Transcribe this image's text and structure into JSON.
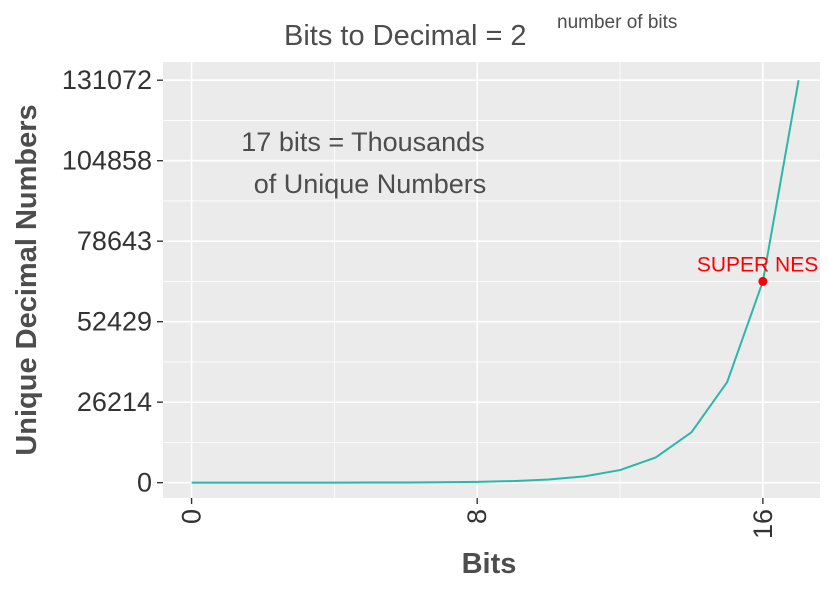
{
  "chart_data": {
    "type": "line",
    "title": "Bits to Decimal = 2",
    "title_superscript": "number of bits",
    "xlabel": "Bits",
    "ylabel": "Unique Decimal Numbers",
    "xlim": [
      -0.8,
      17.6
    ],
    "ylim": [
      -5000,
      137000
    ],
    "x_ticks": [
      0,
      8,
      16
    ],
    "x_tick_labels": [
      "0",
      "8",
      "16"
    ],
    "y_ticks": [
      0,
      26214,
      52429,
      78643,
      104858,
      131072
    ],
    "y_tick_labels": [
      "0",
      "26214",
      "52429",
      "78643",
      "104858",
      "131072"
    ],
    "grid": true,
    "series": [
      {
        "color": "#2ab7a9",
        "x": [
          0,
          1,
          2,
          3,
          4,
          5,
          6,
          7,
          8,
          9,
          10,
          11,
          12,
          13,
          14,
          15,
          16,
          17
        ],
        "y": [
          1,
          2,
          4,
          8,
          16,
          32,
          64,
          128,
          256,
          512,
          1024,
          2048,
          4096,
          8192,
          16384,
          32768,
          65536,
          131072
        ]
      }
    ],
    "highlight": {
      "x": 16,
      "y": 65536,
      "label": "SUPER NES",
      "color": "#ff0000"
    },
    "annotation": {
      "lines": [
        "17 bits =  Thousands",
        "of Unique Numbers"
      ]
    },
    "colors": {
      "panel": "#ebebeb",
      "grid": "#ffffff",
      "line": "#2ab7a9",
      "highlight": "#ff0000"
    }
  }
}
